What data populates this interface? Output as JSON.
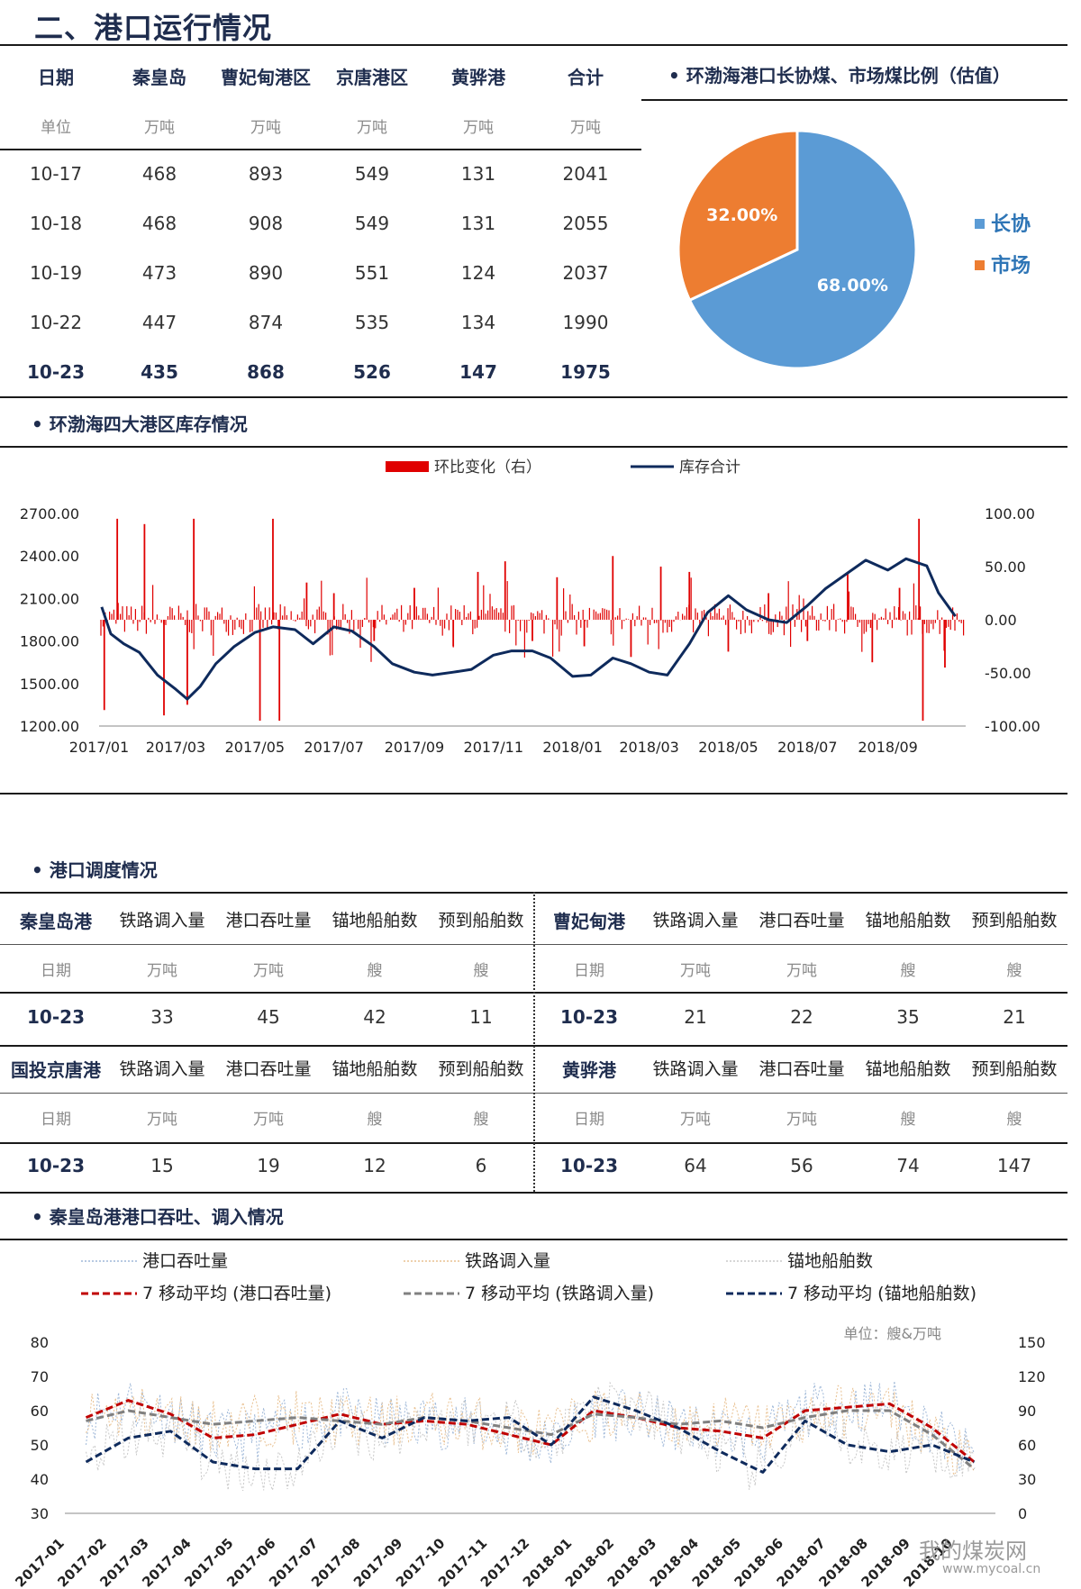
{
  "page_title": "二、港口运行情况",
  "port_table": {
    "headers": [
      "日期",
      "秦皇岛",
      "曹妃甸港区",
      "京唐港区",
      "黄骅港",
      "合计"
    ],
    "units": [
      "单位",
      "万吨",
      "万吨",
      "万吨",
      "万吨",
      "万吨"
    ],
    "rows": [
      [
        "10-17",
        "468",
        "893",
        "549",
        "131",
        "2041"
      ],
      [
        "10-18",
        "468",
        "908",
        "549",
        "131",
        "2055"
      ],
      [
        "10-19",
        "473",
        "890",
        "551",
        "124",
        "2037"
      ],
      [
        "10-22",
        "447",
        "874",
        "535",
        "134",
        "1990"
      ],
      [
        "10-23",
        "435",
        "868",
        "526",
        "147",
        "1975"
      ]
    ]
  },
  "pie_section_title": "• 环渤海港口长协煤、市场煤比例（估值）",
  "inventory_section_title": "• 环渤海四大港区库存情况",
  "dispatch_section_title": "• 港口调度情况",
  "dispatch_tables": [
    {
      "port": "秦皇岛港",
      "headers": [
        "铁路调入量",
        "港口吞吐量",
        "锚地船舶数",
        "预到船舶数"
      ],
      "units": [
        "日期",
        "万吨",
        "万吨",
        "艘",
        "艘"
      ],
      "row": [
        "10-23",
        "33",
        "45",
        "42",
        "11"
      ]
    },
    {
      "port": "曹妃甸港",
      "headers": [
        "铁路调入量",
        "港口吞吐量",
        "锚地船舶数",
        "预到船舶数"
      ],
      "units": [
        "日期",
        "万吨",
        "万吨",
        "艘",
        "艘"
      ],
      "row": [
        "10-23",
        "21",
        "22",
        "35",
        "21"
      ]
    },
    {
      "port": "国投京唐港",
      "headers": [
        "铁路调入量",
        "港口吞吐量",
        "锚地船舶数",
        "预到船舶数"
      ],
      "units": [
        "日期",
        "万吨",
        "万吨",
        "艘",
        "艘"
      ],
      "row": [
        "10-23",
        "15",
        "19",
        "12",
        "6"
      ]
    },
    {
      "port": "黄骅港",
      "headers": [
        "铁路调入量",
        "港口吞吐量",
        "锚地船舶数",
        "预到船舶数"
      ],
      "units": [
        "日期",
        "万吨",
        "万吨",
        "艘",
        "艘"
      ],
      "row": [
        "10-23",
        "64",
        "56",
        "74",
        "147"
      ]
    }
  ],
  "qhd_section_title": "• 秦皇岛港港口吞吐、调入情况",
  "watermark": {
    "text": "我的煤炭网",
    "url": "www.mycoal.cn"
  },
  "colors": {
    "navy": "#1f2d4e",
    "blue": "#5b9bd5",
    "orange": "#ed7d31",
    "red": "#e00000",
    "dark_blue": "#0e2a5c"
  },
  "chart_data": [
    {
      "type": "pie",
      "title": "",
      "labels": [
        "长协",
        "市场"
      ],
      "values": [
        68.0,
        32.0
      ],
      "value_labels": [
        "68.00%",
        "32.00%"
      ],
      "colors": [
        "#5b9bd5",
        "#ed7d31"
      ],
      "legend": "right"
    },
    {
      "type": "line",
      "title": "",
      "legend_placement": "top",
      "x_ticks": [
        "2017/01",
        "2017/03",
        "2017/05",
        "2017/07",
        "2017/09",
        "2017/11",
        "2018/01",
        "2018/03",
        "2018/05",
        "2018/07",
        "2018/09"
      ],
      "y_ticks_left": [
        "2700.00",
        "2400.00",
        "2100.00",
        "1800.00",
        "1500.00",
        "1200.00"
      ],
      "y_ticks_right": [
        "100.00",
        "50.00",
        "0.00",
        "-50.00",
        "-100.00"
      ],
      "ylim_left": [
        1200,
        2700
      ],
      "ylim_right": [
        -100,
        100
      ],
      "series": [
        {
          "name": "库存合计",
          "axis": "left",
          "color": "#0e2a5c",
          "points": [
            [
              "2017-01-03",
              2040
            ],
            [
              "2017-01-10",
              1850
            ],
            [
              "2017-01-20",
              1780
            ],
            [
              "2017-02-01",
              1720
            ],
            [
              "2017-02-15",
              1560
            ],
            [
              "2017-03-01",
              1460
            ],
            [
              "2017-03-10",
              1390
            ],
            [
              "2017-03-20",
              1480
            ],
            [
              "2017-04-01",
              1640
            ],
            [
              "2017-04-15",
              1760
            ],
            [
              "2017-05-01",
              1860
            ],
            [
              "2017-05-15",
              1900
            ],
            [
              "2017-06-01",
              1880
            ],
            [
              "2017-06-15",
              1780
            ],
            [
              "2017-07-01",
              1900
            ],
            [
              "2017-07-15",
              1870
            ],
            [
              "2017-08-01",
              1760
            ],
            [
              "2017-08-15",
              1640
            ],
            [
              "2017-09-01",
              1580
            ],
            [
              "2017-09-15",
              1560
            ],
            [
              "2017-10-01",
              1580
            ],
            [
              "2017-10-15",
              1600
            ],
            [
              "2017-11-01",
              1700
            ],
            [
              "2017-11-15",
              1730
            ],
            [
              "2017-12-01",
              1730
            ],
            [
              "2017-12-15",
              1680
            ],
            [
              "2018-01-01",
              1550
            ],
            [
              "2018-01-15",
              1560
            ],
            [
              "2018-02-01",
              1680
            ],
            [
              "2018-02-15",
              1640
            ],
            [
              "2018-03-01",
              1580
            ],
            [
              "2018-03-15",
              1560
            ],
            [
              "2018-04-01",
              1780
            ],
            [
              "2018-04-15",
              2000
            ],
            [
              "2018-05-01",
              2120
            ],
            [
              "2018-05-15",
              2020
            ],
            [
              "2018-06-01",
              1950
            ],
            [
              "2018-06-15",
              1930
            ],
            [
              "2018-07-01",
              2050
            ],
            [
              "2018-07-15",
              2170
            ],
            [
              "2018-08-01",
              2280
            ],
            [
              "2018-08-15",
              2370
            ],
            [
              "2018-09-01",
              2300
            ],
            [
              "2018-09-15",
              2380
            ],
            [
              "2018-10-01",
              2330
            ],
            [
              "2018-10-10",
              2140
            ],
            [
              "2018-10-23",
              1975
            ]
          ]
        },
        {
          "name": "环比变化（右）",
          "axis": "right",
          "type": "bar",
          "color": "#e00000",
          "points": [
            [
              "2017-01-05",
              -85
            ],
            [
              "2017-01-15",
              95
            ],
            [
              "2017-02-05",
              90
            ],
            [
              "2017-02-20",
              -90
            ],
            [
              "2017-03-10",
              -80
            ],
            [
              "2017-03-15",
              95
            ],
            [
              "2017-05-05",
              -95
            ],
            [
              "2017-05-15",
              95
            ],
            [
              "2017-05-20",
              -95
            ],
            [
              "2017-06-10",
              35
            ],
            [
              "2017-07-01",
              25
            ],
            [
              "2017-08-01",
              -20
            ],
            [
              "2017-09-01",
              30
            ],
            [
              "2017-10-01",
              -25
            ],
            [
              "2017-10-20",
              45
            ],
            [
              "2017-11-10",
              55
            ],
            [
              "2017-12-01",
              -20
            ],
            [
              "2017-12-20",
              40
            ],
            [
              "2018-01-10",
              -25
            ],
            [
              "2018-02-01",
              60
            ],
            [
              "2018-02-15",
              -35
            ],
            [
              "2018-03-10",
              50
            ],
            [
              "2018-04-01",
              45
            ],
            [
              "2018-05-01",
              -30
            ],
            [
              "2018-06-01",
              25
            ],
            [
              "2018-07-01",
              -20
            ],
            [
              "2018-08-01",
              45
            ],
            [
              "2018-08-20",
              -40
            ],
            [
              "2018-09-10",
              30
            ],
            [
              "2018-09-25",
              95
            ],
            [
              "2018-09-28",
              -95
            ],
            [
              "2018-10-15",
              -45
            ]
          ]
        }
      ]
    },
    {
      "type": "line",
      "title": "",
      "unit_note": "单位：艘&万吨",
      "legend_placement": "top",
      "x_ticks": [
        "2017-01",
        "2017-02",
        "2017-03",
        "2017-04",
        "2017-05",
        "2017-06",
        "2017-07",
        "2017-08",
        "2017-09",
        "2017-10",
        "2017-11",
        "2017-12",
        "2018-01",
        "2018-02",
        "2018-03",
        "2018-04",
        "2018-05",
        "2018-06",
        "2018-07",
        "2018-08",
        "2018-09",
        "2018-10"
      ],
      "y_ticks_left": [
        "80",
        "70",
        "60",
        "50",
        "40",
        "30"
      ],
      "y_ticks_right": [
        "150",
        "120",
        "90",
        "60",
        "30",
        "0"
      ],
      "ylim_left": [
        30,
        80
      ],
      "ylim_right": [
        0,
        150
      ],
      "series": [
        {
          "name": "港口吞吐量",
          "style": "dotted-light",
          "color": "#9fb8d8"
        },
        {
          "name": "铁路调入量",
          "style": "dotted-light",
          "color": "#e8c090"
        },
        {
          "name": "锚地船舶数",
          "style": "dotted-light",
          "color": "#c8c8c8"
        },
        {
          "name": "7 移动平均 (港口吞吐量)",
          "style": "dashed",
          "color": "#c00000",
          "monthly": [
            58,
            63,
            59,
            52,
            53,
            56,
            59,
            56,
            57,
            56,
            53,
            50,
            60,
            58,
            55,
            54,
            52,
            60,
            61,
            62,
            55,
            45
          ]
        },
        {
          "name": "7 移动平均 (铁路调入量)",
          "style": "dashed",
          "color": "#808080",
          "monthly": [
            57,
            60,
            58,
            56,
            57,
            58,
            57,
            56,
            58,
            57,
            55,
            53,
            59,
            58,
            56,
            57,
            55,
            58,
            60,
            60,
            53,
            43
          ]
        },
        {
          "name": "7 移动平均 (锚地船舶数)",
          "style": "dashed",
          "color": "#0e2a5c",
          "monthly": [
            45,
            52,
            54,
            45,
            43,
            43,
            57,
            52,
            58,
            57,
            58,
            50,
            64,
            60,
            55,
            48,
            42,
            57,
            50,
            48,
            50,
            45
          ]
        }
      ]
    }
  ]
}
